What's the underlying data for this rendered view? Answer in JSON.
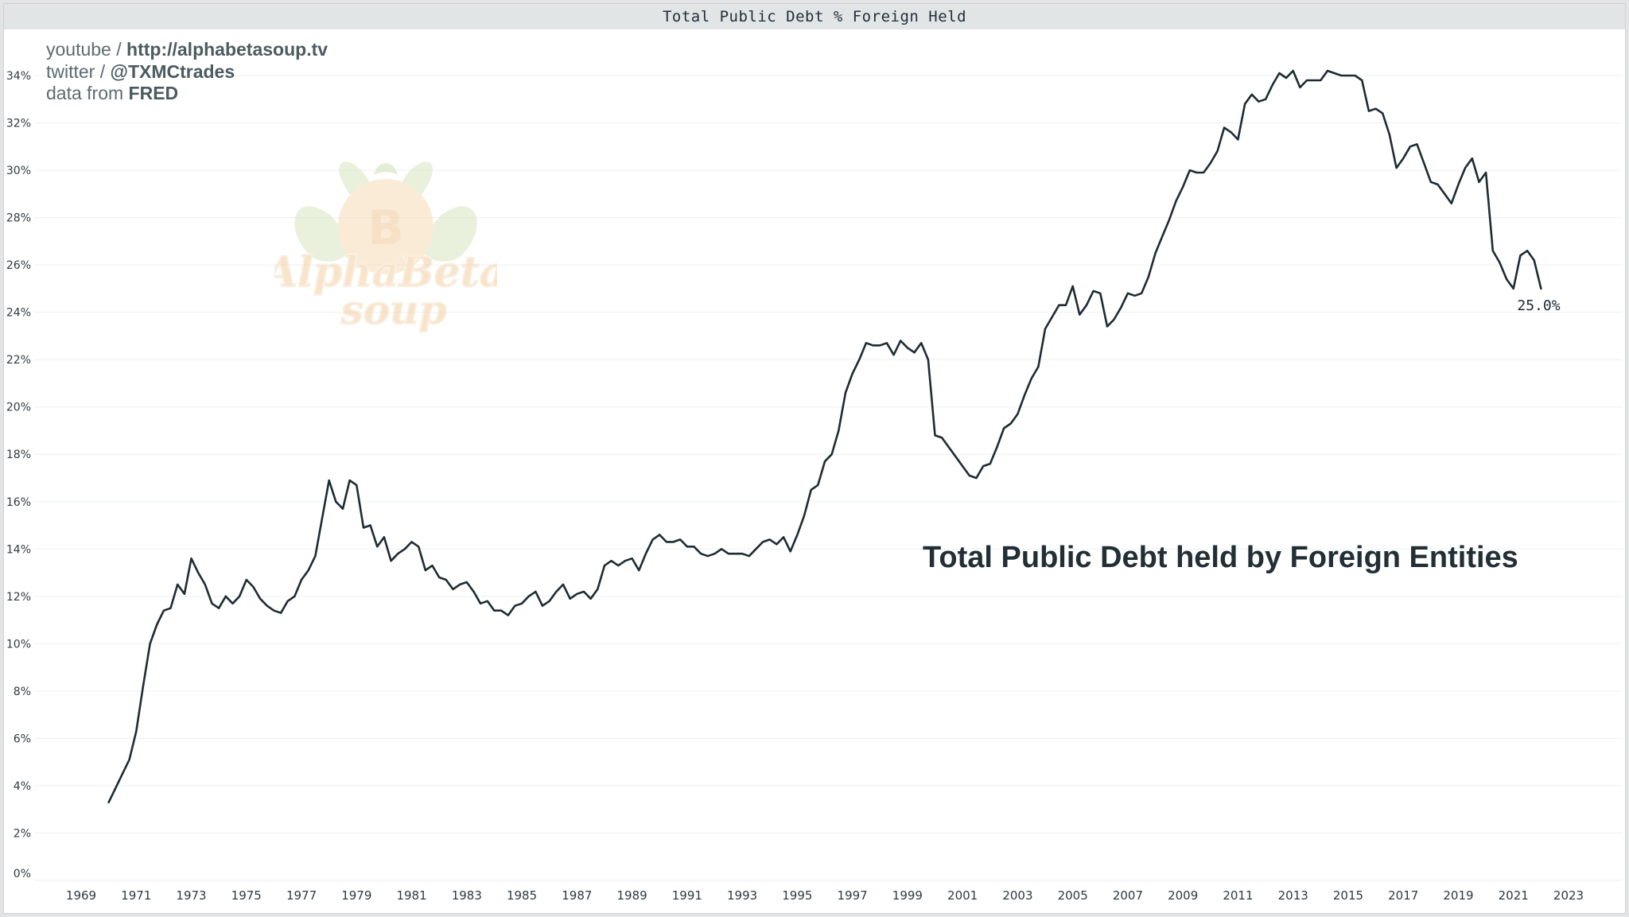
{
  "chart_title": "Total Public Debt % Foreign Held",
  "credits": {
    "line1_prefix": "youtube / ",
    "line1_bold": "http://alphabetasoup.tv",
    "line2_prefix": "twitter / ",
    "line2_bold": "@TXMCtrades",
    "line3_prefix": "data from ",
    "line3_bold": "FRED"
  },
  "watermark": {
    "logo_text": "AlphaBeta soup",
    "icon": "bitcoin-tomato-logo"
  },
  "annotation": "Total Public Debt held by Foreign Entities",
  "last_value_label": "25.0%",
  "colors": {
    "line": "#1d2c33",
    "text": "#223036",
    "title_bar": "#e2e5e6",
    "grid": "#eef0f1"
  },
  "chart_data": {
    "type": "line",
    "title": "Total Public Debt % Foreign Held",
    "xlabel": "",
    "ylabel": "",
    "ylim": [
      0,
      34
    ],
    "xlim": [
      1969,
      2023
    ],
    "grid": true,
    "y_ticks": [
      "0%",
      "2%",
      "4%",
      "6%",
      "8%",
      "10%",
      "12%",
      "14%",
      "16%",
      "18%",
      "20%",
      "22%",
      "24%",
      "26%",
      "28%",
      "30%",
      "32%",
      "34%"
    ],
    "x_ticks": [
      "1969",
      "1971",
      "1973",
      "1975",
      "1977",
      "1979",
      "1981",
      "1983",
      "1985",
      "1987",
      "1989",
      "1991",
      "1993",
      "1995",
      "1997",
      "1999",
      "2001",
      "2003",
      "2005",
      "2007",
      "2009",
      "2011",
      "2013",
      "2015",
      "2017",
      "2019",
      "2021",
      "2023"
    ],
    "series": [
      {
        "values": [
          [
            1970.0,
            3.3
          ],
          [
            1970.25,
            3.9
          ],
          [
            1970.5,
            4.5
          ],
          [
            1970.75,
            5.1
          ],
          [
            1971.0,
            6.3
          ],
          [
            1971.25,
            8.2
          ],
          [
            1971.5,
            10.0
          ],
          [
            1971.75,
            10.8
          ],
          [
            1972.0,
            11.4
          ],
          [
            1972.25,
            11.5
          ],
          [
            1972.5,
            12.5
          ],
          [
            1972.75,
            12.1
          ],
          [
            1973.0,
            13.6
          ],
          [
            1973.25,
            13.0
          ],
          [
            1973.5,
            12.5
          ],
          [
            1973.75,
            11.7
          ],
          [
            1974.0,
            11.5
          ],
          [
            1974.25,
            12.0
          ],
          [
            1974.5,
            11.7
          ],
          [
            1974.75,
            12.0
          ],
          [
            1975.0,
            12.7
          ],
          [
            1975.25,
            12.4
          ],
          [
            1975.5,
            11.9
          ],
          [
            1975.75,
            11.6
          ],
          [
            1976.0,
            11.4
          ],
          [
            1976.25,
            11.3
          ],
          [
            1976.5,
            11.8
          ],
          [
            1976.75,
            12.0
          ],
          [
            1977.0,
            12.7
          ],
          [
            1977.25,
            13.1
          ],
          [
            1977.5,
            13.7
          ],
          [
            1977.75,
            15.3
          ],
          [
            1978.0,
            16.9
          ],
          [
            1978.25,
            16.0
          ],
          [
            1978.5,
            15.7
          ],
          [
            1978.75,
            16.9
          ],
          [
            1979.0,
            16.7
          ],
          [
            1979.25,
            14.9
          ],
          [
            1979.5,
            15.0
          ],
          [
            1979.75,
            14.1
          ],
          [
            1980.0,
            14.5
          ],
          [
            1980.25,
            13.5
          ],
          [
            1980.5,
            13.8
          ],
          [
            1980.75,
            14.0
          ],
          [
            1981.0,
            14.3
          ],
          [
            1981.25,
            14.1
          ],
          [
            1981.5,
            13.1
          ],
          [
            1981.75,
            13.3
          ],
          [
            1982.0,
            12.8
          ],
          [
            1982.25,
            12.7
          ],
          [
            1982.5,
            12.3
          ],
          [
            1982.75,
            12.5
          ],
          [
            1983.0,
            12.6
          ],
          [
            1983.25,
            12.2
          ],
          [
            1983.5,
            11.7
          ],
          [
            1983.75,
            11.8
          ],
          [
            1984.0,
            11.4
          ],
          [
            1984.25,
            11.4
          ],
          [
            1984.5,
            11.2
          ],
          [
            1984.75,
            11.6
          ],
          [
            1985.0,
            11.7
          ],
          [
            1985.25,
            12.0
          ],
          [
            1985.5,
            12.2
          ],
          [
            1985.75,
            11.6
          ],
          [
            1986.0,
            11.8
          ],
          [
            1986.25,
            12.2
          ],
          [
            1986.5,
            12.5
          ],
          [
            1986.75,
            11.9
          ],
          [
            1987.0,
            12.1
          ],
          [
            1987.25,
            12.2
          ],
          [
            1987.5,
            11.9
          ],
          [
            1987.75,
            12.3
          ],
          [
            1988.0,
            13.3
          ],
          [
            1988.25,
            13.5
          ],
          [
            1988.5,
            13.3
          ],
          [
            1988.75,
            13.5
          ],
          [
            1989.0,
            13.6
          ],
          [
            1989.25,
            13.1
          ],
          [
            1989.5,
            13.8
          ],
          [
            1989.75,
            14.4
          ],
          [
            1990.0,
            14.6
          ],
          [
            1990.25,
            14.3
          ],
          [
            1990.5,
            14.3
          ],
          [
            1990.75,
            14.4
          ],
          [
            1991.0,
            14.1
          ],
          [
            1991.25,
            14.1
          ],
          [
            1991.5,
            13.8
          ],
          [
            1991.75,
            13.7
          ],
          [
            1992.0,
            13.8
          ],
          [
            1992.25,
            14.0
          ],
          [
            1992.5,
            13.8
          ],
          [
            1992.75,
            13.8
          ],
          [
            1993.0,
            13.8
          ],
          [
            1993.25,
            13.7
          ],
          [
            1993.5,
            14.0
          ],
          [
            1993.75,
            14.3
          ],
          [
            1994.0,
            14.4
          ],
          [
            1994.25,
            14.2
          ],
          [
            1994.5,
            14.5
          ],
          [
            1994.75,
            13.9
          ],
          [
            1995.0,
            14.6
          ],
          [
            1995.25,
            15.4
          ],
          [
            1995.5,
            16.5
          ],
          [
            1995.75,
            16.7
          ],
          [
            1996.0,
            17.7
          ],
          [
            1996.25,
            18.0
          ],
          [
            1996.5,
            19.0
          ],
          [
            1996.75,
            20.6
          ],
          [
            1997.0,
            21.4
          ],
          [
            1997.25,
            22.0
          ],
          [
            1997.5,
            22.7
          ],
          [
            1997.75,
            22.6
          ],
          [
            1998.0,
            22.6
          ],
          [
            1998.25,
            22.7
          ],
          [
            1998.5,
            22.2
          ],
          [
            1998.75,
            22.8
          ],
          [
            1999.0,
            22.5
          ],
          [
            1999.25,
            22.3
          ],
          [
            1999.5,
            22.7
          ],
          [
            1999.75,
            22.0
          ],
          [
            2000.0,
            18.8
          ],
          [
            2000.25,
            18.7
          ],
          [
            2000.5,
            18.3
          ],
          [
            2000.75,
            17.9
          ],
          [
            2001.0,
            17.5
          ],
          [
            2001.25,
            17.1
          ],
          [
            2001.5,
            17.0
          ],
          [
            2001.75,
            17.5
          ],
          [
            2002.0,
            17.6
          ],
          [
            2002.25,
            18.3
          ],
          [
            2002.5,
            19.1
          ],
          [
            2002.75,
            19.3
          ],
          [
            2003.0,
            19.7
          ],
          [
            2003.25,
            20.5
          ],
          [
            2003.5,
            21.2
          ],
          [
            2003.75,
            21.7
          ],
          [
            2004.0,
            23.3
          ],
          [
            2004.25,
            23.8
          ],
          [
            2004.5,
            24.3
          ],
          [
            2004.75,
            24.3
          ],
          [
            2005.0,
            25.1
          ],
          [
            2005.25,
            23.9
          ],
          [
            2005.5,
            24.3
          ],
          [
            2005.75,
            24.9
          ],
          [
            2006.0,
            24.8
          ],
          [
            2006.25,
            23.4
          ],
          [
            2006.5,
            23.7
          ],
          [
            2006.75,
            24.2
          ],
          [
            2007.0,
            24.8
          ],
          [
            2007.25,
            24.7
          ],
          [
            2007.5,
            24.8
          ],
          [
            2007.75,
            25.5
          ],
          [
            2008.0,
            26.5
          ],
          [
            2008.25,
            27.2
          ],
          [
            2008.5,
            27.9
          ],
          [
            2008.75,
            28.7
          ],
          [
            2009.0,
            29.3
          ],
          [
            2009.25,
            30.0
          ],
          [
            2009.5,
            29.9
          ],
          [
            2009.75,
            29.9
          ],
          [
            2010.0,
            30.3
          ],
          [
            2010.25,
            30.8
          ],
          [
            2010.5,
            31.8
          ],
          [
            2010.75,
            31.6
          ],
          [
            2011.0,
            31.3
          ],
          [
            2011.25,
            32.8
          ],
          [
            2011.5,
            33.2
          ],
          [
            2011.75,
            32.9
          ],
          [
            2012.0,
            33.0
          ],
          [
            2012.25,
            33.6
          ],
          [
            2012.5,
            34.1
          ],
          [
            2012.75,
            33.9
          ],
          [
            2013.0,
            34.2
          ],
          [
            2013.25,
            33.5
          ],
          [
            2013.5,
            33.8
          ],
          [
            2013.75,
            33.8
          ],
          [
            2014.0,
            33.8
          ],
          [
            2014.25,
            34.2
          ],
          [
            2014.5,
            34.1
          ],
          [
            2014.75,
            34.0
          ],
          [
            2015.0,
            34.0
          ],
          [
            2015.25,
            34.0
          ],
          [
            2015.5,
            33.8
          ],
          [
            2015.75,
            32.5
          ],
          [
            2016.0,
            32.6
          ],
          [
            2016.25,
            32.4
          ],
          [
            2016.5,
            31.5
          ],
          [
            2016.75,
            30.1
          ],
          [
            2017.0,
            30.5
          ],
          [
            2017.25,
            31.0
          ],
          [
            2017.5,
            31.1
          ],
          [
            2017.75,
            30.3
          ],
          [
            2018.0,
            29.5
          ],
          [
            2018.25,
            29.4
          ],
          [
            2018.5,
            29.0
          ],
          [
            2018.75,
            28.6
          ],
          [
            2019.0,
            29.4
          ],
          [
            2019.25,
            30.1
          ],
          [
            2019.5,
            30.5
          ],
          [
            2019.75,
            29.5
          ],
          [
            2020.0,
            29.9
          ],
          [
            2020.25,
            26.6
          ],
          [
            2020.5,
            26.1
          ],
          [
            2020.75,
            25.4
          ],
          [
            2021.0,
            25.0
          ],
          [
            2021.25,
            26.4
          ],
          [
            2021.5,
            26.6
          ],
          [
            2021.75,
            26.2
          ],
          [
            2022.0,
            25.0
          ]
        ]
      }
    ]
  }
}
